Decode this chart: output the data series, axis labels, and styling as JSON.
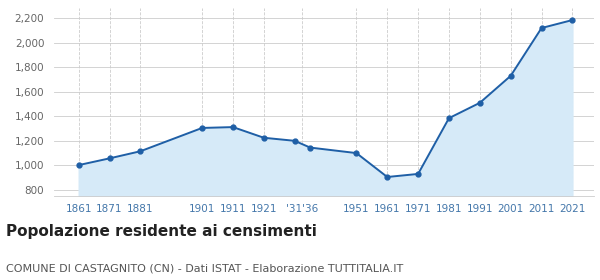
{
  "years": [
    1861,
    1871,
    1881,
    1901,
    1911,
    1921,
    1931,
    1936,
    1951,
    1961,
    1971,
    1981,
    1991,
    2001,
    2011,
    2021
  ],
  "population": [
    1002,
    1057,
    1115,
    1305,
    1312,
    1225,
    1200,
    1145,
    1100,
    905,
    930,
    1385,
    1510,
    1730,
    2120,
    2185
  ],
  "ylim": [
    750,
    2280
  ],
  "yticks": [
    800,
    1000,
    1200,
    1400,
    1600,
    1800,
    2000,
    2200
  ],
  "xlim_left": 1853,
  "xlim_right": 2028,
  "xtick_positions": [
    1861,
    1871,
    1881,
    1901,
    1911,
    1921,
    1933.5,
    1951,
    1961,
    1971,
    1981,
    1991,
    2001,
    2011,
    2021
  ],
  "xtick_labels": [
    "1861",
    "1871",
    "1881",
    "1901",
    "1911",
    "1921",
    "'31'36",
    "1951",
    "1961",
    "1971",
    "1981",
    "1991",
    "2001",
    "2011",
    "2021"
  ],
  "line_color": "#1f5fa6",
  "fill_color": "#d6eaf8",
  "marker_color": "#1f5fa6",
  "bg_color": "#ffffff",
  "grid_color_h": "#cccccc",
  "grid_color_v": "#cccccc",
  "title": "Popolazione residente ai censimenti",
  "subtitle": "COMUNE DI CASTAGNITO (CN) - Dati ISTAT - Elaborazione TUTTITALIA.IT",
  "title_fontsize": 11,
  "subtitle_fontsize": 8,
  "tick_label_color": "#4477aa",
  "ytick_label_color": "#666666"
}
